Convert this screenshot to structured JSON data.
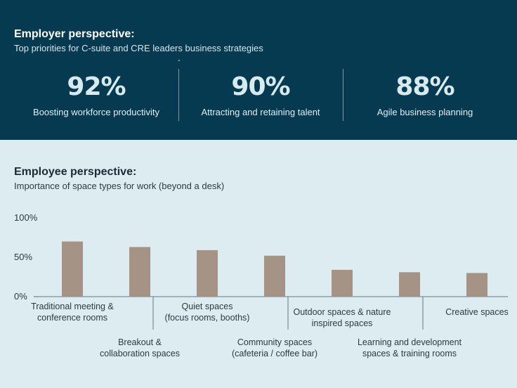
{
  "employer": {
    "title": "Employer perspective:",
    "subtitle": "Top priorities for C-suite and CRE leaders business strategies",
    "stats": [
      {
        "value": "92%",
        "label": "Boosting workforce productivity"
      },
      {
        "value": "90%",
        "label": "Attracting and retaining talent"
      },
      {
        "value": "88%",
        "label": "Agile business planning"
      }
    ]
  },
  "employee": {
    "title": "Employee perspective:",
    "subtitle": "Importance of space types for work (beyond a desk)"
  },
  "colors": {
    "top_bg": "#063a50",
    "bottom_bg": "#dcecf0",
    "bar": "#a59385"
  },
  "chart_data": {
    "type": "bar",
    "categories": [
      [
        "Traditional meeting &",
        "conference rooms"
      ],
      [
        "Breakout &",
        "collaboration spaces"
      ],
      [
        "Quiet spaces",
        "(focus rooms, booths)"
      ],
      [
        "Community spaces",
        "(cafeteria / coffee bar)"
      ],
      [
        "Outdoor spaces & nature",
        "inspired spaces"
      ],
      [
        "Learning and development",
        "spaces & training rooms"
      ],
      [
        "Creative spaces"
      ]
    ],
    "values": [
      70,
      63,
      59,
      52,
      34,
      31,
      30
    ],
    "yticks": [
      "0%",
      "50%",
      "100%"
    ],
    "ylim": [
      0,
      100
    ]
  }
}
